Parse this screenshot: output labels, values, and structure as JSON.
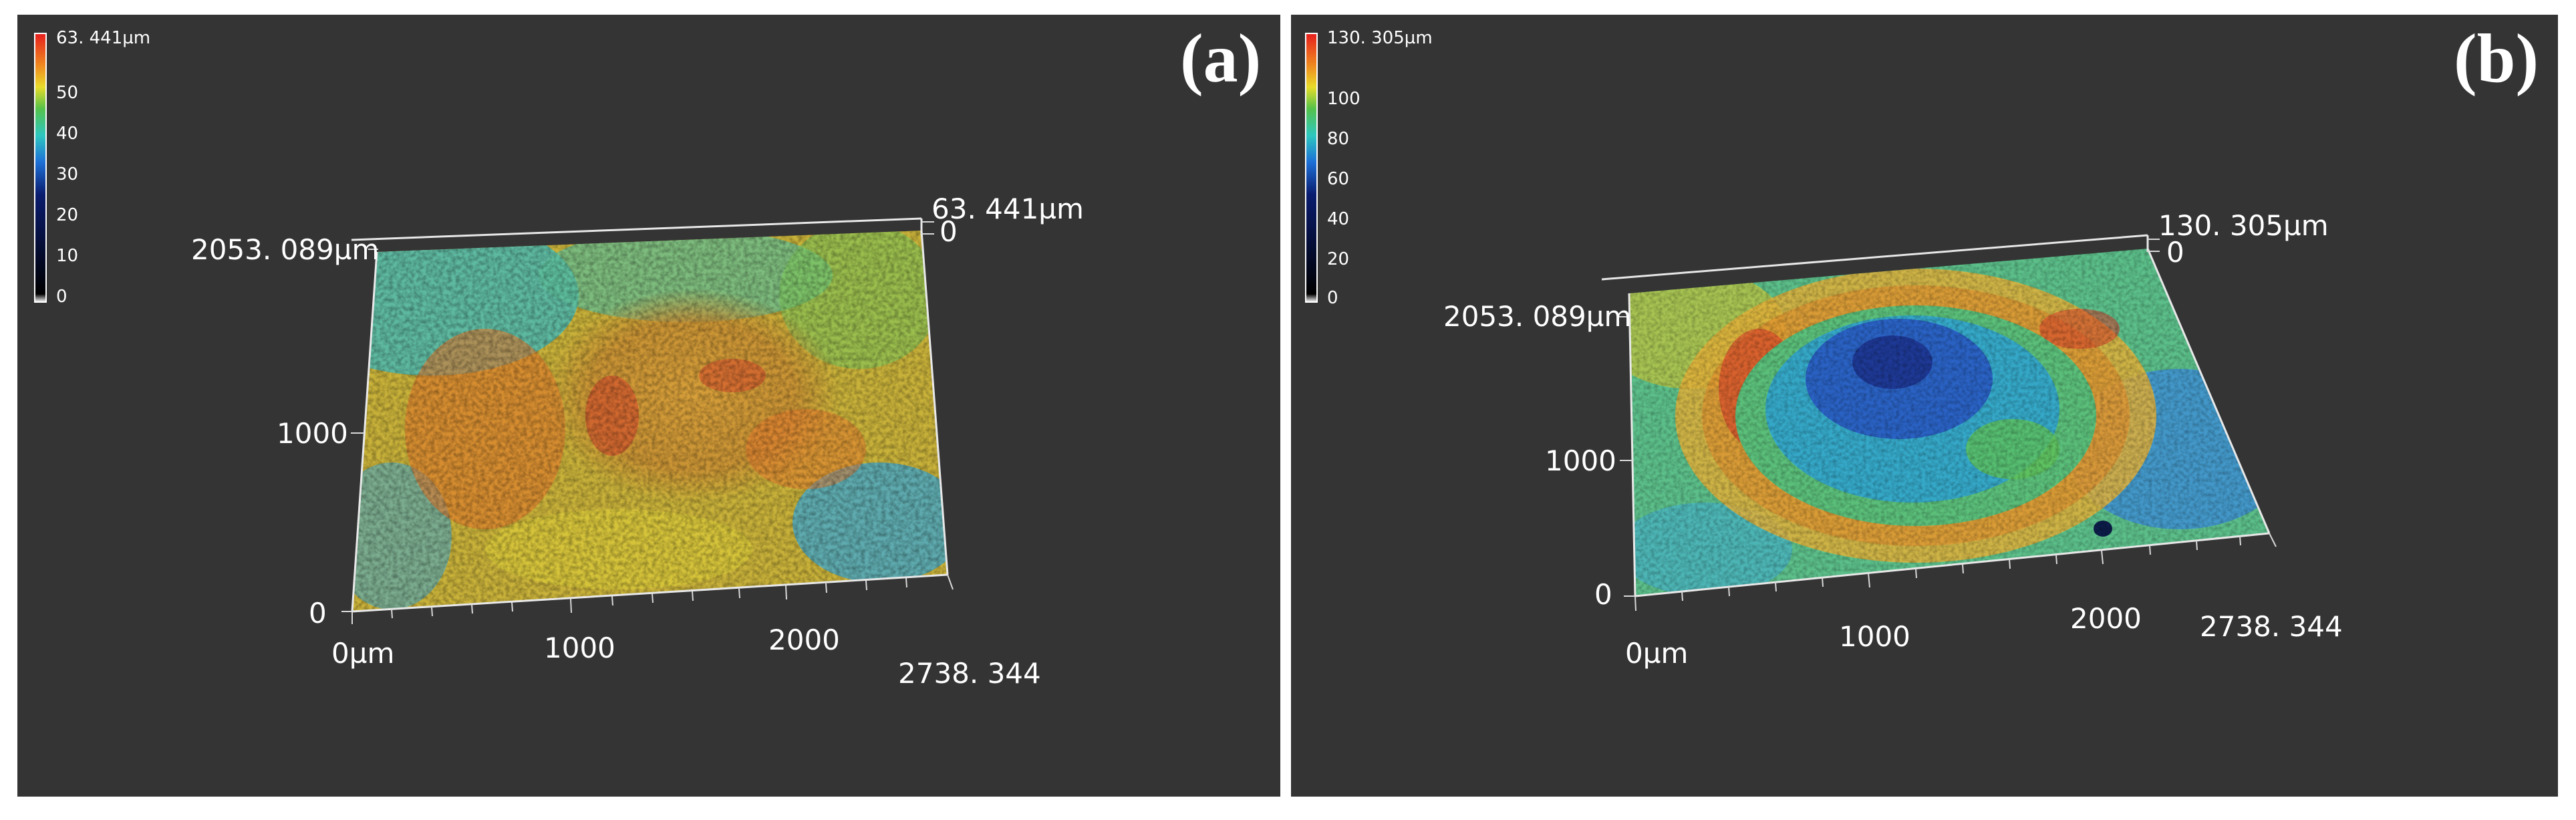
{
  "panel_a": {
    "label": "(a)",
    "colorbar": {
      "max_label": "63. 441µm",
      "ticks": [
        "50",
        "40",
        "30",
        "20",
        "10",
        "0"
      ]
    },
    "axes": {
      "z_top": "63. 441µm",
      "z_zero": "0",
      "y_max": "2053. 089µm",
      "y_mid": "1000",
      "y_zero": "0",
      "x_zero": "0µm",
      "x_1000": "1000",
      "x_2000": "2000",
      "x_max": "2738. 344"
    }
  },
  "panel_b": {
    "label": "(b)",
    "colorbar": {
      "max_label": "130. 305µm",
      "ticks": [
        "100",
        "80",
        "60",
        "40",
        "20",
        "0"
      ]
    },
    "axes": {
      "z_top": "130. 305µm",
      "z_zero": "0",
      "y_max": "2053. 089µm",
      "y_mid": "1000",
      "y_zero": "0",
      "x_zero": "0µm",
      "x_1000": "1000",
      "x_2000": "2000",
      "x_max": "2738. 344"
    }
  }
}
